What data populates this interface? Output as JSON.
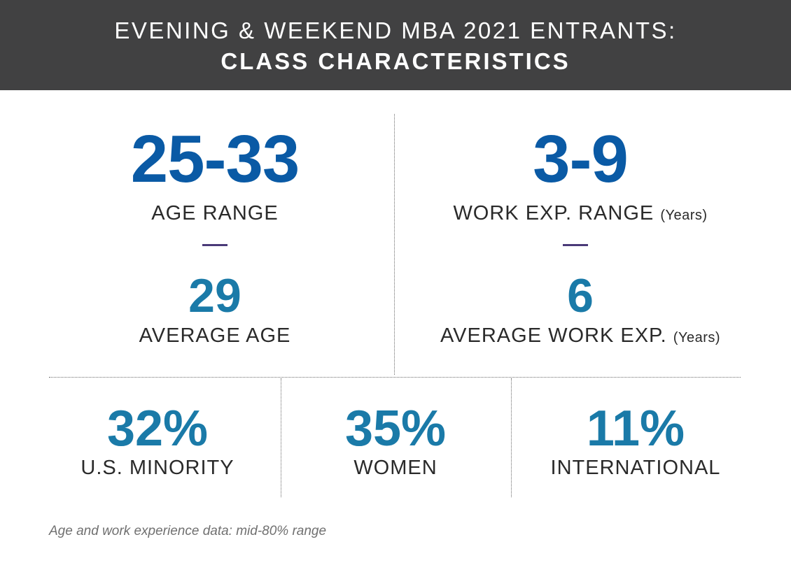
{
  "header": {
    "line1": "EVENING & WEEKEND MBA 2021 ENTRANTS:",
    "line2": "CLASS CHARACTERISTICS"
  },
  "age": {
    "range_value": "25-33",
    "range_label": "AGE RANGE",
    "average_value": "29",
    "average_label": "AVERAGE AGE"
  },
  "work": {
    "range_value": "3-9",
    "range_label": "WORK EXP. RANGE",
    "range_unit": "(Years)",
    "average_value": "6",
    "average_label": "AVERAGE WORK EXP.",
    "average_unit": "(Years)"
  },
  "stats": {
    "minority_value": "32%",
    "minority_label": "U.S. MINORITY",
    "women_value": "35%",
    "women_label": "WOMEN",
    "international_value": "11%",
    "international_label": "INTERNATIONAL"
  },
  "footnote": "Age and work experience data: mid-80% range",
  "colors": {
    "header_bg": "#414142",
    "range_blue": "#0a5aa5",
    "stat_teal": "#1a7aa8",
    "divider_purple": "#4a3a78"
  }
}
